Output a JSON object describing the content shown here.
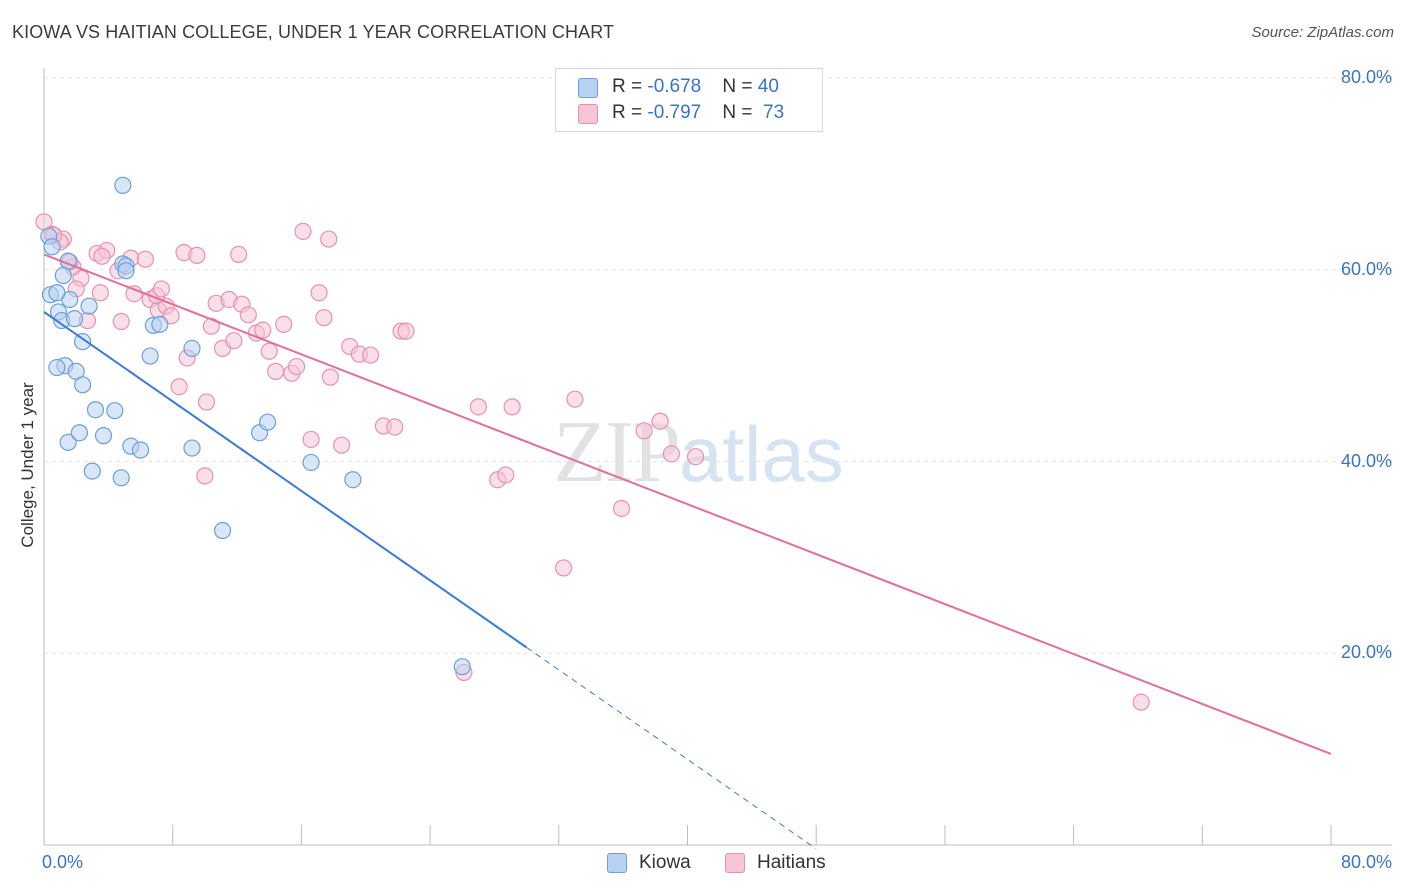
{
  "header": {
    "title": "KIOWA VS HAITIAN COLLEGE, UNDER 1 YEAR CORRELATION CHART",
    "source": "Source: ZipAtlas.com"
  },
  "watermark": {
    "zip": "ZIP",
    "atlas": "atlas"
  },
  "legend": {
    "r_label": "R = ",
    "n_label": "N = ",
    "kiowa": {
      "r": "-0.678",
      "n": "40"
    },
    "haitians": {
      "r": "-0.797",
      "n": "73"
    }
  },
  "bottom_legend": {
    "kiowa": "Kiowa",
    "haitians": "Haitians"
  },
  "colors": {
    "kiowa_fill": "#b8d2f2",
    "kiowa_stroke": "#6d9fd8",
    "kiowa_line": "#3a7bd5",
    "haitians_fill": "#f7c5d6",
    "haitians_stroke": "#e393b0",
    "haitians_line": "#e0709a",
    "tick_text": "#3a74c4",
    "grid": "#e6e6e6"
  },
  "chart_data": {
    "type": "scatter",
    "title": "KIOWA VS HAITIAN COLLEGE, UNDER 1 YEAR CORRELATION CHART",
    "xlabel": "",
    "ylabel": "College, Under 1 year",
    "xlim": [
      0,
      80
    ],
    "ylim": [
      0,
      80
    ],
    "x_tick_labels": [
      "0.0%",
      "80.0%"
    ],
    "y_tick_labels": [
      "20.0%",
      "40.0%",
      "60.0%",
      "80.0%"
    ],
    "y_ticks": [
      20,
      40,
      60,
      80
    ],
    "series": [
      {
        "name": "Kiowa",
        "r": -0.678,
        "n": 40,
        "trend": {
          "x0": 0,
          "y0": 55.6,
          "x1": 30,
          "y1": 20.6,
          "dashed_to_x": 48
        },
        "points": [
          [
            0.3,
            63.5
          ],
          [
            0.5,
            62.4
          ],
          [
            0.4,
            57.4
          ],
          [
            0.9,
            55.6
          ],
          [
            1.1,
            54.7
          ],
          [
            1.6,
            56.9
          ],
          [
            1.5,
            60.9
          ],
          [
            1.2,
            59.4
          ],
          [
            0.8,
            57.6
          ],
          [
            2.8,
            56.2
          ],
          [
            1.9,
            54.9
          ],
          [
            2.4,
            52.5
          ],
          [
            1.3,
            50.0
          ],
          [
            0.8,
            49.8
          ],
          [
            2.0,
            49.4
          ],
          [
            2.4,
            48.0
          ],
          [
            3.2,
            45.4
          ],
          [
            4.4,
            45.3
          ],
          [
            1.5,
            42.0
          ],
          [
            2.2,
            43.0
          ],
          [
            3.7,
            42.7
          ],
          [
            3.0,
            39.0
          ],
          [
            5.4,
            41.6
          ],
          [
            6.0,
            41.2
          ],
          [
            4.8,
            38.3
          ],
          [
            4.9,
            60.6
          ],
          [
            5.1,
            60.4
          ],
          [
            5.1,
            59.9
          ],
          [
            4.9,
            68.8
          ],
          [
            6.6,
            51.0
          ],
          [
            6.8,
            54.2
          ],
          [
            7.2,
            54.3
          ],
          [
            9.2,
            51.8
          ],
          [
            9.2,
            41.4
          ],
          [
            11.1,
            32.8
          ],
          [
            13.4,
            43.0
          ],
          [
            13.9,
            44.1
          ],
          [
            16.6,
            39.9
          ],
          [
            19.2,
            38.1
          ],
          [
            26.0,
            18.6
          ]
        ]
      },
      {
        "name": "Haitians",
        "r": -0.797,
        "n": 73,
        "trend": {
          "x0": 0,
          "y0": 61.6,
          "x1": 80,
          "y1": 9.5
        },
        "points": [
          [
            0.0,
            65.0
          ],
          [
            0.5,
            63.7
          ],
          [
            1.2,
            63.2
          ],
          [
            2.3,
            59.1
          ],
          [
            1.8,
            60.3
          ],
          [
            2.7,
            54.7
          ],
          [
            3.3,
            61.7
          ],
          [
            3.9,
            62.0
          ],
          [
            3.5,
            57.6
          ],
          [
            4.6,
            59.9
          ],
          [
            4.8,
            54.6
          ],
          [
            5.4,
            61.2
          ],
          [
            5.6,
            57.5
          ],
          [
            6.3,
            61.1
          ],
          [
            6.6,
            56.9
          ],
          [
            7.1,
            55.8
          ],
          [
            7.6,
            56.2
          ],
          [
            7.0,
            57.3
          ],
          [
            7.3,
            58.0
          ],
          [
            7.9,
            55.2
          ],
          [
            8.4,
            47.8
          ],
          [
            8.9,
            50.8
          ],
          [
            8.7,
            61.8
          ],
          [
            9.5,
            61.5
          ],
          [
            10.1,
            46.2
          ],
          [
            10.0,
            38.5
          ],
          [
            10.4,
            54.1
          ],
          [
            10.7,
            56.5
          ],
          [
            11.1,
            51.8
          ],
          [
            11.5,
            56.9
          ],
          [
            11.8,
            52.6
          ],
          [
            12.3,
            56.4
          ],
          [
            12.7,
            55.3
          ],
          [
            12.1,
            61.6
          ],
          [
            13.2,
            53.4
          ],
          [
            13.6,
            53.7
          ],
          [
            14.0,
            51.5
          ],
          [
            14.4,
            49.4
          ],
          [
            14.9,
            54.3
          ],
          [
            15.4,
            49.2
          ],
          [
            15.7,
            49.9
          ],
          [
            16.1,
            64.0
          ],
          [
            16.6,
            42.3
          ],
          [
            17.1,
            57.6
          ],
          [
            17.4,
            55.0
          ],
          [
            17.8,
            48.8
          ],
          [
            17.7,
            63.2
          ],
          [
            18.5,
            41.7
          ],
          [
            19.0,
            52.0
          ],
          [
            19.6,
            51.2
          ],
          [
            20.3,
            51.1
          ],
          [
            21.1,
            43.7
          ],
          [
            21.8,
            43.6
          ],
          [
            22.2,
            53.6
          ],
          [
            22.5,
            53.6
          ],
          [
            27.0,
            45.7
          ],
          [
            28.2,
            38.1
          ],
          [
            28.7,
            38.6
          ],
          [
            29.1,
            45.7
          ],
          [
            32.3,
            28.9
          ],
          [
            33.0,
            46.5
          ],
          [
            35.9,
            35.1
          ],
          [
            37.3,
            43.2
          ],
          [
            38.3,
            44.2
          ],
          [
            39.0,
            40.8
          ],
          [
            40.5,
            40.5
          ],
          [
            26.1,
            18.0
          ],
          [
            68.2,
            14.9
          ],
          [
            3.6,
            61.4
          ],
          [
            2.0,
            58.0
          ],
          [
            1.6,
            60.8
          ],
          [
            1.0,
            62.9
          ],
          [
            0.6,
            63.6
          ]
        ]
      }
    ]
  }
}
